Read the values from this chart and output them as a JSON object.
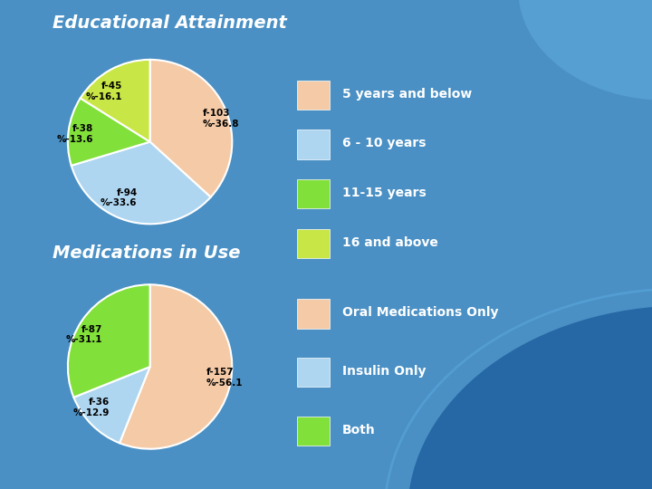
{
  "background_color": "#4a90c4",
  "title1": "Educational Attainment",
  "title2": "Medications in Use",
  "pie1_labels": [
    "f-103\n%-36.8",
    "f-94\n%-33.6",
    "f-38\n%-13.6",
    "f-45\n%-16.1"
  ],
  "pie1_values": [
    36.8,
    33.6,
    13.6,
    16.1
  ],
  "pie1_colors": [
    "#f5cba7",
    "#aed6f1",
    "#82e03a",
    "#c8e645"
  ],
  "pie1_legend_labels": [
    "5 years and below",
    "6 - 10 years",
    "11-15 years",
    "16 and above"
  ],
  "pie1_legend_colors": [
    "#f5cba7",
    "#aed6f1",
    "#82e03a",
    "#c8e645"
  ],
  "pie2_labels": [
    "f-157\n%-56.1",
    "f-36\n%-12.9",
    "f-87\n%-31.1"
  ],
  "pie2_values": [
    56.1,
    12.9,
    31.1
  ],
  "pie2_colors": [
    "#f5cba7",
    "#aed6f1",
    "#82e03a"
  ],
  "pie2_legend_labels": [
    "Oral Medications Only",
    "Insulin Only",
    "Both"
  ],
  "pie2_legend_colors": [
    "#f5cba7",
    "#aed6f1",
    "#82e03a"
  ],
  "title_color": "#ffffff",
  "label_color": "#000000",
  "legend_text_color": "#ffffff",
  "title1_fontsize": 14,
  "title2_fontsize": 14,
  "legend_fontsize": 10,
  "label_fontsize": 7.5,
  "pie1_startangle": 90,
  "pie2_startangle": 90,
  "dark_bg_color": "#2060a0"
}
